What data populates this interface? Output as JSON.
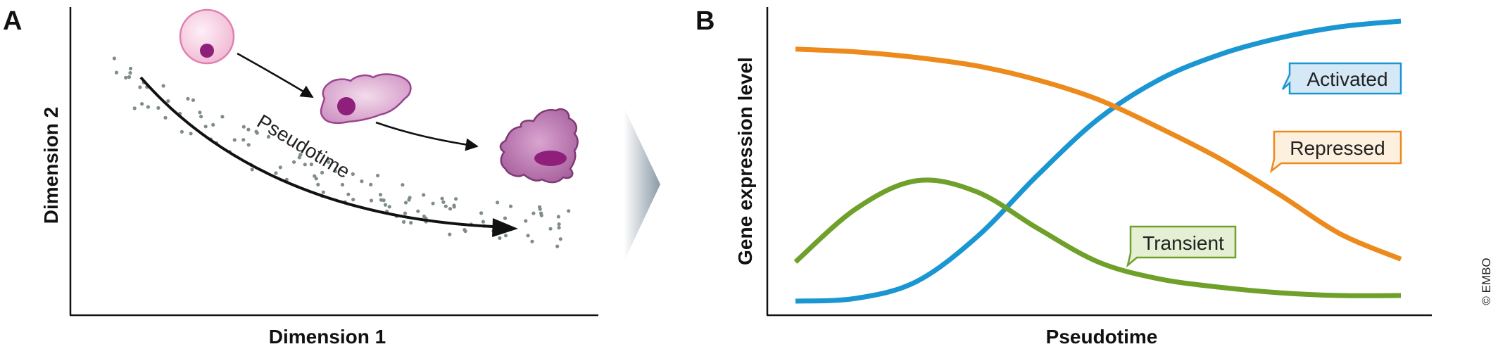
{
  "panel_a": {
    "letter": "A",
    "x_axis_label": "Dimension 1",
    "y_axis_label": "Dimension 2",
    "trajectory_label": "Pseudotime",
    "cell_stages": [
      "round-cell",
      "amoeboid-cell",
      "differentiated-cell"
    ]
  },
  "panel_b": {
    "letter": "B",
    "x_axis_label": "Pseudotime",
    "y_axis_label": "Gene expression level",
    "labels": {
      "activated": "Activated",
      "repressed": "Repressed",
      "transient": "Transient"
    }
  },
  "copyright": "© EMBO",
  "colors": {
    "activated": "#1a96d2",
    "repressed": "#ec8a1c",
    "transient": "#6ea02a",
    "dots": "#7f8c8c",
    "cell_pink": "#f3c6dd",
    "cell_purple": "#b36aaa",
    "nucleus": "#8e1f7a"
  },
  "chart_data": {
    "type": "line",
    "title": "",
    "xlabel": "Pseudotime",
    "ylabel": "Gene expression level",
    "xlim": [
      0,
      1
    ],
    "ylim": [
      0,
      1
    ],
    "x": [
      0,
      0.1,
      0.2,
      0.3,
      0.4,
      0.5,
      0.6,
      0.7,
      0.8,
      0.9,
      1.0
    ],
    "series": [
      {
        "name": "Activated",
        "values": [
          0.0,
          0.01,
          0.07,
          0.23,
          0.45,
          0.65,
          0.79,
          0.88,
          0.94,
          0.98,
          1.0
        ]
      },
      {
        "name": "Repressed",
        "values": [
          0.9,
          0.89,
          0.87,
          0.84,
          0.79,
          0.72,
          0.62,
          0.51,
          0.38,
          0.24,
          0.15
        ]
      },
      {
        "name": "Transient",
        "values": [
          0.14,
          0.33,
          0.43,
          0.39,
          0.26,
          0.14,
          0.08,
          0.05,
          0.03,
          0.02,
          0.02
        ]
      }
    ]
  }
}
